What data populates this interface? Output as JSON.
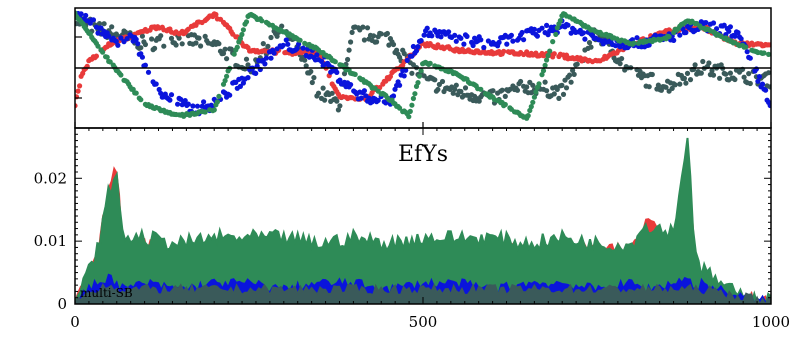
{
  "chart_data": [
    {
      "type": "scatter",
      "panel": "top",
      "xlim": [
        0,
        1000
      ],
      "ylim": [
        0,
        1
      ],
      "grid": false,
      "series": [
        {
          "color": "#3a5a5a",
          "values": [
            [
              0,
              0.9
            ],
            [
              50,
              0.8
            ],
            [
              100,
              0.7
            ],
            [
              150,
              0.75
            ],
            [
              200,
              0.7
            ],
            [
              250,
              0.5
            ],
            [
              300,
              0.85
            ],
            [
              350,
              0.3
            ],
            [
              380,
              0.2
            ],
            [
              400,
              0.8
            ],
            [
              450,
              0.75
            ],
            [
              500,
              0.4
            ],
            [
              550,
              0.3
            ],
            [
              600,
              0.25
            ],
            [
              650,
              0.35
            ],
            [
              700,
              0.3
            ],
            [
              750,
              0.8
            ],
            [
              800,
              0.45
            ],
            [
              850,
              0.35
            ],
            [
              900,
              0.5
            ],
            [
              950,
              0.45
            ],
            [
              1000,
              0.4
            ]
          ]
        },
        {
          "color": "#e83a3a",
          "values": [
            [
              0,
              0.2
            ],
            [
              10,
              0.45
            ],
            [
              20,
              0.55
            ],
            [
              50,
              0.7
            ],
            [
              120,
              0.85
            ],
            [
              150,
              0.78
            ],
            [
              200,
              0.95
            ],
            [
              250,
              0.65
            ],
            [
              300,
              0.63
            ],
            [
              350,
              0.62
            ],
            [
              380,
              0.25
            ],
            [
              420,
              0.25
            ],
            [
              500,
              0.7
            ],
            [
              550,
              0.65
            ],
            [
              600,
              0.63
            ],
            [
              650,
              0.62
            ],
            [
              700,
              0.6
            ],
            [
              750,
              0.55
            ],
            [
              800,
              0.7
            ],
            [
              850,
              0.8
            ],
            [
              900,
              0.85
            ],
            [
              950,
              0.7
            ],
            [
              1000,
              0.7
            ]
          ]
        },
        {
          "color": "#0a14dc",
          "values": [
            [
              0,
              0.95
            ],
            [
              30,
              0.85
            ],
            [
              60,
              0.7
            ],
            [
              80,
              0.8
            ],
            [
              120,
              0.3
            ],
            [
              170,
              0.15
            ],
            [
              200,
              0.2
            ],
            [
              300,
              0.7
            ],
            [
              350,
              0.6
            ],
            [
              400,
              0.3
            ],
            [
              450,
              0.2
            ],
            [
              500,
              0.8
            ],
            [
              550,
              0.75
            ],
            [
              600,
              0.7
            ],
            [
              700,
              0.85
            ],
            [
              750,
              0.75
            ],
            [
              800,
              0.7
            ],
            [
              850,
              0.75
            ],
            [
              900,
              0.85
            ],
            [
              950,
              0.8
            ],
            [
              1000,
              0.2
            ]
          ]
        },
        {
          "color": "#2e8b57",
          "values": [
            [
              0,
              0.95
            ],
            [
              50,
              0.55
            ],
            [
              100,
              0.2
            ],
            [
              150,
              0.1
            ],
            [
              200,
              0.15
            ],
            [
              250,
              0.95
            ],
            [
              300,
              0.8
            ],
            [
              350,
              0.65
            ],
            [
              400,
              0.45
            ],
            [
              450,
              0.25
            ],
            [
              480,
              0.1
            ],
            [
              500,
              0.55
            ],
            [
              550,
              0.45
            ],
            [
              600,
              0.25
            ],
            [
              650,
              0.08
            ],
            [
              700,
              0.95
            ],
            [
              750,
              0.8
            ],
            [
              800,
              0.7
            ],
            [
              850,
              0.75
            ],
            [
              880,
              0.9
            ],
            [
              950,
              0.7
            ],
            [
              1000,
              0.6
            ]
          ]
        }
      ]
    },
    {
      "type": "area",
      "panel": "bottom",
      "title": "EfYs",
      "annotation": "multi-SB",
      "xlim": [
        0,
        1000
      ],
      "ylim": [
        0,
        0.028
      ],
      "xticks": [
        0,
        500,
        1000
      ],
      "yticks": [
        0,
        0.01,
        0.02
      ],
      "xtick_labels": [
        "0",
        "500",
        "1000"
      ],
      "ytick_labels": [
        "0",
        "0.01",
        "0.02"
      ],
      "grid": false,
      "x": [
        0,
        30,
        50,
        60,
        70,
        100,
        150,
        200,
        250,
        300,
        350,
        400,
        450,
        500,
        550,
        600,
        650,
        700,
        750,
        800,
        820,
        860,
        880,
        890,
        900,
        950,
        1000
      ],
      "series": [
        {
          "color": "#e83a3a",
          "values": [
            0.0,
            0.006,
            0.019,
            0.021,
            0.008,
            0.009,
            0.007,
            0.008,
            0.008,
            0.008,
            0.007,
            0.008,
            0.007,
            0.008,
            0.008,
            0.008,
            0.008,
            0.008,
            0.008,
            0.008,
            0.013,
            0.01,
            0.025,
            0.008,
            0.004,
            0.001,
            0.0
          ]
        },
        {
          "color": "#2e8b57",
          "values": [
            0.0,
            0.007,
            0.018,
            0.019,
            0.01,
            0.01,
            0.009,
            0.01,
            0.01,
            0.01,
            0.009,
            0.01,
            0.009,
            0.01,
            0.01,
            0.01,
            0.009,
            0.01,
            0.009,
            0.009,
            0.012,
            0.011,
            0.026,
            0.009,
            0.005,
            0.001,
            0.0
          ]
        },
        {
          "color": "#0a14dc",
          "values": [
            0.0,
            0.003,
            0.004,
            0.003,
            0.002,
            0.003,
            0.002,
            0.003,
            0.003,
            0.002,
            0.003,
            0.003,
            0.002,
            0.003,
            0.003,
            0.002,
            0.003,
            0.003,
            0.002,
            0.003,
            0.002,
            0.003,
            0.004,
            0.002,
            0.003,
            0.001,
            0.0
          ]
        },
        {
          "color": "#3a5a5a",
          "values": [
            0.0,
            0.002,
            0.003,
            0.002,
            0.002,
            0.002,
            0.002,
            0.002,
            0.002,
            0.002,
            0.002,
            0.002,
            0.002,
            0.002,
            0.002,
            0.002,
            0.002,
            0.002,
            0.002,
            0.002,
            0.002,
            0.002,
            0.002,
            0.002,
            0.002,
            0.001,
            0.0
          ]
        }
      ]
    }
  ]
}
